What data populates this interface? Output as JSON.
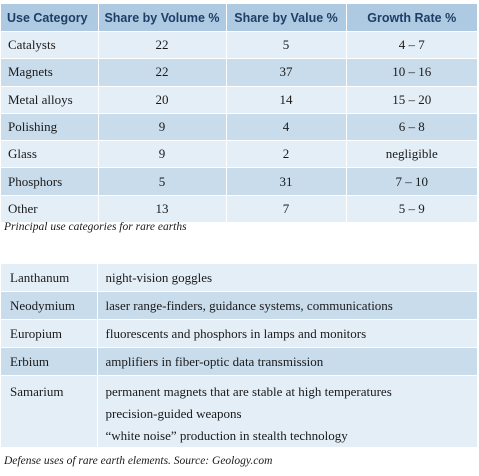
{
  "use_table": {
    "headers": [
      "Use Category",
      "Share by Volume %",
      "Share by Value %",
      "Growth Rate %"
    ],
    "rows": [
      [
        "Catalysts",
        "22",
        "5",
        "4 – 7"
      ],
      [
        "Magnets",
        "22",
        "37",
        "10 – 16"
      ],
      [
        "Metal alloys",
        "20",
        "14",
        "15 – 20"
      ],
      [
        "Polishing",
        "9",
        "4",
        "6 – 8"
      ],
      [
        "Glass",
        "9",
        "2",
        "negligible"
      ],
      [
        "Phosphors",
        "5",
        "31",
        "7 – 10"
      ],
      [
        "Other",
        "13",
        "7",
        "5 – 9"
      ]
    ],
    "caption": "Principal use categories for rare earths"
  },
  "defense_table": {
    "rows": [
      {
        "element": "Lanthanum",
        "uses": [
          "night-vision goggles"
        ]
      },
      {
        "element": "Neodymium",
        "uses": [
          "laser range-finders, guidance systems, communications"
        ]
      },
      {
        "element": "Europium",
        "uses": [
          "fluorescents and phosphors in lamps and monitors"
        ]
      },
      {
        "element": "Erbium",
        "uses": [
          "amplifiers in fiber-optic data transmission"
        ]
      },
      {
        "element": "Samarium",
        "uses": [
          "permanent magnets that are stable at high temperatures",
          "precision-guided weapons",
          "“white noise” production in stealth technology"
        ]
      }
    ],
    "caption": "Defense uses of rare earth elements. Source: Geology.com"
  },
  "colors": {
    "header_bg": "#aecae2",
    "header_text": "#1d3f66",
    "row_light": "#e4eef7",
    "row_dark": "#c9dcec"
  }
}
